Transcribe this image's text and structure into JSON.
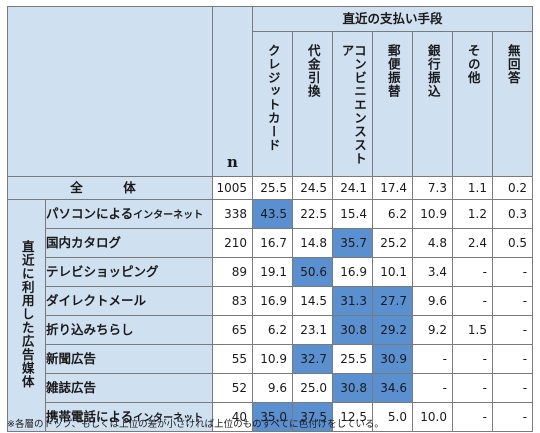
{
  "chart_data": {
    "type": "table",
    "header": {
      "group_title": "直近の支払い手段",
      "n_label": "n",
      "columns": [
        "クレジットカード",
        "代金引換",
        "コンビニエンスストア",
        "郵便振替",
        "銀行振込",
        "その他",
        "無回答"
      ]
    },
    "side_label": "直近に利用した広告媒体",
    "total": {
      "label": "全　体",
      "n": "1005",
      "values": [
        "25.5",
        "24.5",
        "24.1",
        "17.4",
        "7.3",
        "1.1",
        "0.2"
      ],
      "highlight": []
    },
    "rows": [
      {
        "label": "パソコンによる",
        "label_small": "インターネット",
        "n": "338",
        "values": [
          "43.5",
          "22.5",
          "15.4",
          "6.2",
          "10.9",
          "1.2",
          "0.3"
        ],
        "highlight": [
          0
        ]
      },
      {
        "label": "国内カタログ",
        "label_small": "",
        "n": "210",
        "values": [
          "16.7",
          "14.8",
          "35.7",
          "25.2",
          "4.8",
          "2.4",
          "0.5"
        ],
        "highlight": [
          2
        ]
      },
      {
        "label": "テレビショッピング",
        "label_small": "",
        "n": "89",
        "values": [
          "19.1",
          "50.6",
          "16.9",
          "10.1",
          "3.4",
          "-",
          "-"
        ],
        "highlight": [
          1
        ]
      },
      {
        "label": "ダイレクトメール",
        "label_small": "",
        "n": "83",
        "values": [
          "16.9",
          "14.5",
          "31.3",
          "27.7",
          "9.6",
          "-",
          "-"
        ],
        "highlight": [
          2,
          3
        ]
      },
      {
        "label": "折り込みちらし",
        "label_small": "",
        "n": "65",
        "values": [
          "6.2",
          "23.1",
          "30.8",
          "29.2",
          "9.2",
          "1.5",
          "-"
        ],
        "highlight": [
          2,
          3
        ]
      },
      {
        "label": "新聞広告",
        "label_small": "",
        "n": "55",
        "values": [
          "10.9",
          "32.7",
          "25.5",
          "30.9",
          "-",
          "-",
          "-"
        ],
        "highlight": [
          1,
          3
        ]
      },
      {
        "label": "雑誌広告",
        "label_small": "",
        "n": "52",
        "values": [
          "9.6",
          "25.0",
          "30.8",
          "34.6",
          "-",
          "-",
          "-"
        ],
        "highlight": [
          2,
          3
        ]
      },
      {
        "label": "携帯電話による",
        "label_small": "インターネット",
        "n": "40",
        "values": [
          "35.0",
          "37.5",
          "12.5",
          "5.0",
          "10.0",
          "-",
          "-"
        ],
        "highlight": [
          0,
          1
        ]
      }
    ],
    "note": "※各層のトップ、もしくは上位の差が小さければ上位のものすべてに色付けをしている。"
  },
  "colors": {
    "header_bg": "#cfe0f0",
    "highlight": "#5a8fd0",
    "border": "#7a7a7a"
  }
}
